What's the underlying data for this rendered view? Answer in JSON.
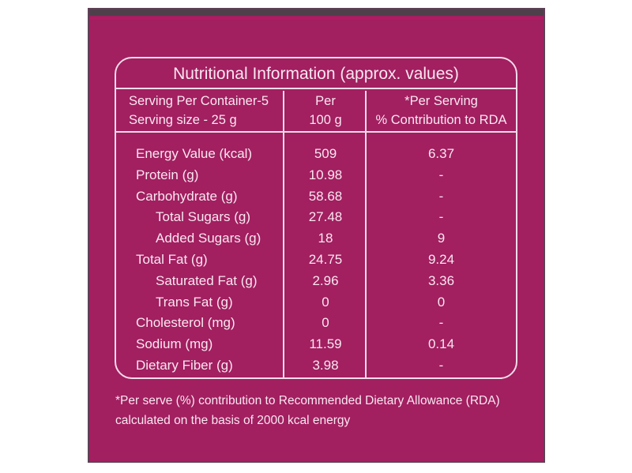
{
  "label": {
    "title": "Nutritional Information (approx. values)",
    "header": {
      "col1_line1": "Serving Per Container-5",
      "col1_line2": "Serving size - 25 g",
      "col2_line1": "Per",
      "col2_line2": "100 g",
      "col3_line1": "*Per Serving",
      "col3_line2": "% Contribution to RDA"
    },
    "rows": [
      {
        "name": "Energy Value (kcal)",
        "per100": "509",
        "rda": "6.37",
        "indent": false
      },
      {
        "name": "Protein (g)",
        "per100": "10.98",
        "rda": "-",
        "indent": false
      },
      {
        "name": "Carbohydrate (g)",
        "per100": "58.68",
        "rda": "-",
        "indent": false
      },
      {
        "name": "Total Sugars (g)",
        "per100": "27.48",
        "rda": "-",
        "indent": true
      },
      {
        "name": "Added Sugars (g)",
        "per100": "18",
        "rda": "9",
        "indent": true
      },
      {
        "name": "Total Fat (g)",
        "per100": "24.75",
        "rda": "9.24",
        "indent": false
      },
      {
        "name": "Saturated Fat (g)",
        "per100": "2.96",
        "rda": "3.36",
        "indent": true
      },
      {
        "name": "Trans Fat (g)",
        "per100": "0",
        "rda": "0",
        "indent": true
      },
      {
        "name": "Cholesterol (mg)",
        "per100": "0",
        "rda": "-",
        "indent": false
      },
      {
        "name": "Sodium (mg)",
        "per100": "11.59",
        "rda": "0.14",
        "indent": false
      },
      {
        "name": "Dietary Fiber (g)",
        "per100": "3.98",
        "rda": "-",
        "indent": false
      }
    ],
    "footnote_line1": "*Per serve (%) contribution to Recommended Dietary Allowance (RDA)",
    "footnote_line2": "calculated on the basis of 2000 kcal energy",
    "colors": {
      "background": "#a21f60",
      "top_band": "#4f3f4b",
      "accent": "#b81a63",
      "edge": "#5e4156",
      "text": "#f8e7f1",
      "line": "#f5dcea",
      "page": "#ffffff"
    }
  }
}
